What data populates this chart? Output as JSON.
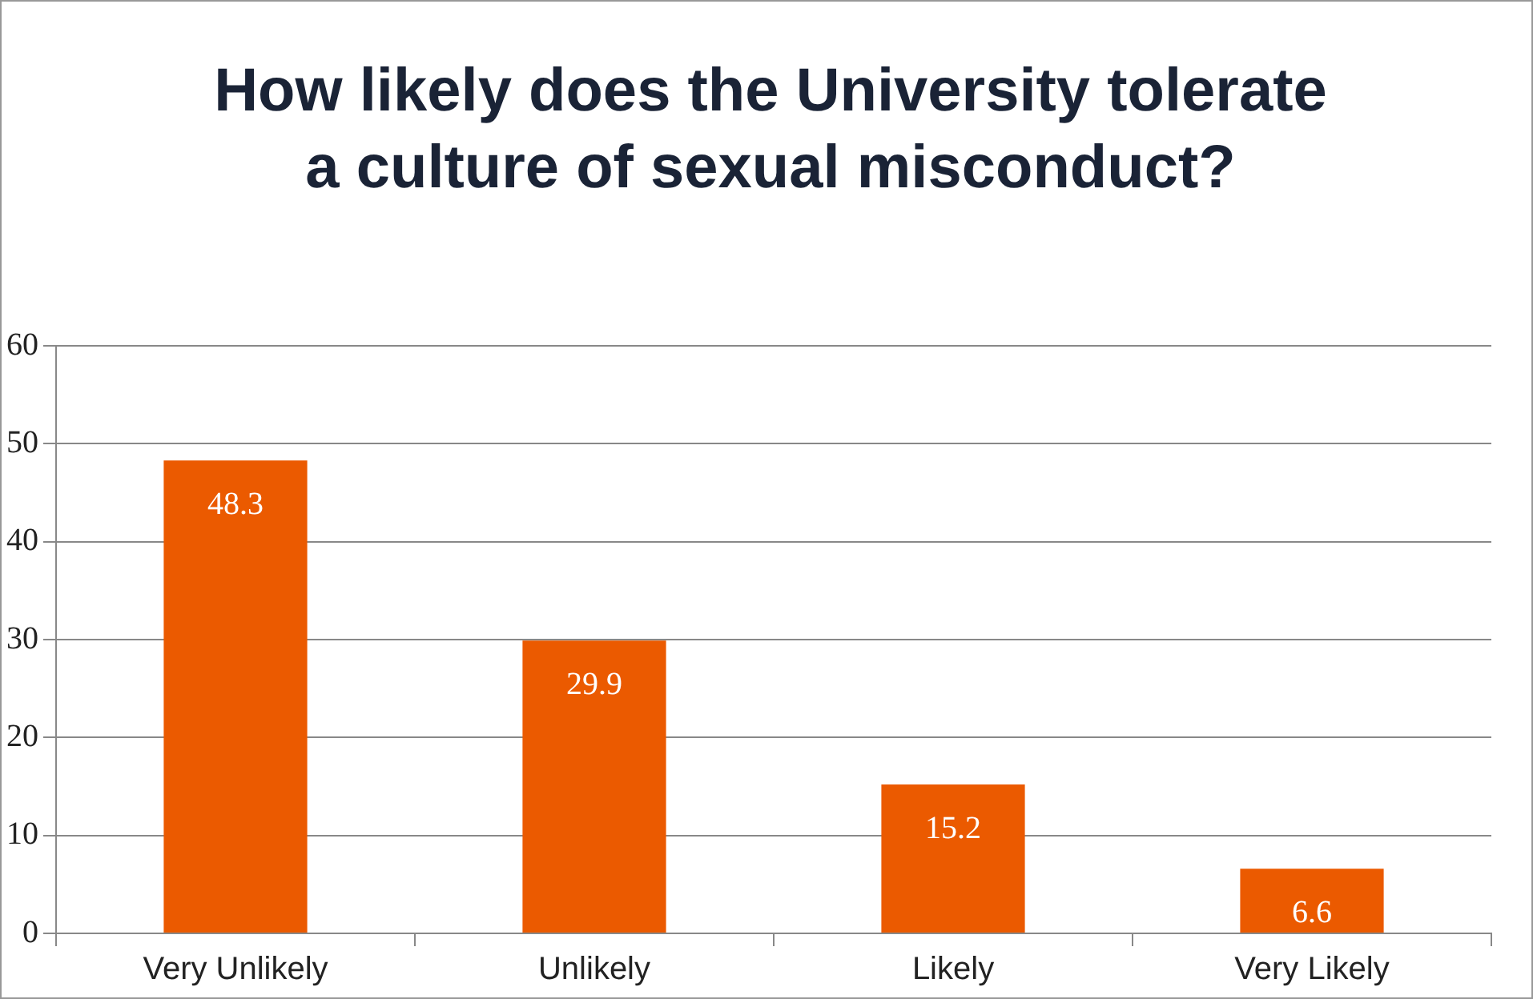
{
  "chart_data": {
    "type": "bar",
    "title": "How likely does the University tolerate a culture of sexual misconduct?",
    "categories": [
      "Very Unlikely",
      "Unlikely",
      "Likely",
      "Very Likely"
    ],
    "values": [
      48.3,
      29.9,
      15.2,
      6.6
    ],
    "color": "#eb5a00",
    "ylim": [
      0,
      60
    ],
    "yticks": [
      0,
      10,
      20,
      30,
      40,
      50,
      60
    ],
    "grid": "y",
    "data_labels": true
  }
}
